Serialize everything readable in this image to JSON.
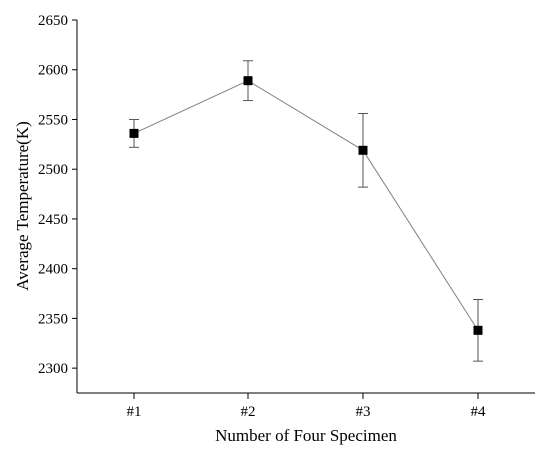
{
  "chart_data": {
    "type": "line",
    "title": "",
    "xlabel": "Number of Four Specimen",
    "ylabel": "Average Temperature(K)",
    "categories": [
      "#1",
      "#2",
      "#3",
      "#4"
    ],
    "series": [
      {
        "values": [
          2536,
          2589,
          2519,
          2338
        ],
        "error": [
          14,
          20,
          37,
          31
        ],
        "marker": "square",
        "color": "#000000",
        "line_color": "#808080"
      }
    ],
    "ylim": [
      2275,
      2650
    ],
    "yticks": [
      2300,
      2350,
      2400,
      2450,
      2500,
      2550,
      2600,
      2650
    ],
    "grid": false,
    "legend": "none"
  }
}
